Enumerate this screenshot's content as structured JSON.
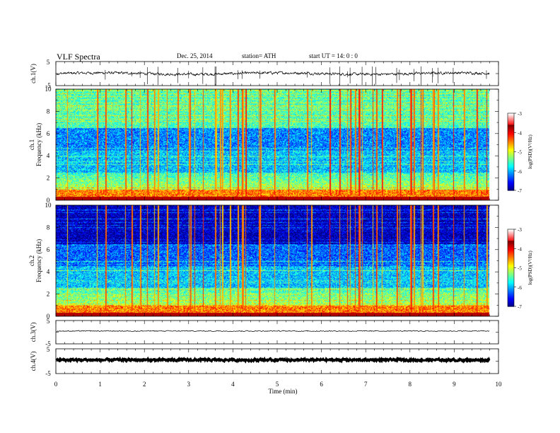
{
  "header": {
    "title": "VLF  Spectra",
    "date": "Dec. 25,  2014",
    "station": "station= ATH",
    "start": "start  UT  =    14: 0  : 0"
  },
  "chart_data": {
    "type": "heatmap",
    "xlabel": "Time  (min)",
    "xlim": [
      0,
      10
    ],
    "xticks": [
      "0",
      "1",
      "2",
      "3",
      "4",
      "5",
      "6",
      "7",
      "8",
      "9",
      "10"
    ],
    "data_end_min": 9.8,
    "panels": [
      {
        "kind": "waveform",
        "ylabel": "ch.1(V)",
        "ylim": [
          -5,
          5
        ],
        "yticks": [
          "5",
          "-5"
        ],
        "baseline": 0.0,
        "noise": 0.4,
        "spikes": true
      },
      {
        "kind": "spectrogram",
        "ylabel_line1": "ch.1",
        "ylabel_line2": "Frequency  (kHz)",
        "ylim": [
          0,
          10
        ],
        "yticks": [
          "0",
          "2",
          "4",
          "6",
          "8",
          "10"
        ],
        "colorbar": {
          "label": "log(PSD)(V²/Hz)",
          "ticks": [
            "-3",
            "-4",
            "-5",
            "-6",
            "-7"
          ],
          "range": [
            -7,
            -3
          ]
        }
      },
      {
        "kind": "spectrogram",
        "ylabel_line1": "ch.2",
        "ylabel_line2": "Frequency  (kHz)",
        "ylim": [
          0,
          10
        ],
        "yticks": [
          "0",
          "2",
          "4",
          "6",
          "8",
          "10"
        ],
        "colorbar": {
          "label": "log(PSD)(V²/Hz)",
          "ticks": [
            "-3",
            "-4",
            "-5",
            "-6",
            "-7"
          ],
          "range": [
            -7,
            -3
          ]
        }
      },
      {
        "kind": "waveform",
        "ylabel": "ch.3(V)",
        "ylim": [
          -5,
          5
        ],
        "yticks": [
          "5",
          "-5"
        ],
        "baseline": 0.5,
        "noise": 0.15,
        "spikes": false
      },
      {
        "kind": "waveform",
        "ylabel": "ch.4(V)",
        "ylim": [
          -5,
          5
        ],
        "yticks": [
          "5",
          "-5"
        ],
        "baseline": 0.5,
        "noise": 0.3,
        "spikes": false,
        "thick": true
      }
    ]
  }
}
